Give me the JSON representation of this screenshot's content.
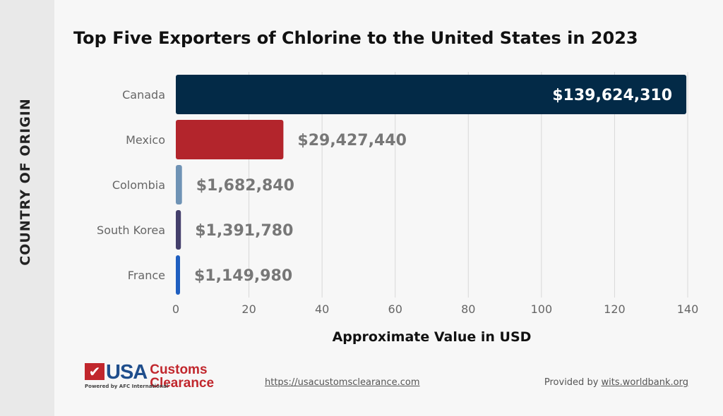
{
  "chart_data": {
    "type": "bar",
    "orientation": "horizontal",
    "title": "Top Five Exporters of Chlorine to the United States in 2023",
    "xlabel": "Approximate Value in USD",
    "ylabel": "COUNTRY OF ORIGIN",
    "categories": [
      "Canada",
      "Mexico",
      "Colombia",
      "South Korea",
      "France"
    ],
    "values": [
      139.62431,
      29.42744,
      1.68284,
      1.39178,
      1.14998
    ],
    "data_labels": [
      "$139,624,310",
      "$29,427,440",
      "$1,682,840",
      "$1,391,780",
      "$1,149,980"
    ],
    "colors": [
      "#032a47",
      "#b3252c",
      "#6f93b5",
      "#443f6b",
      "#1f5fc0"
    ],
    "xlim": [
      0,
      140
    ],
    "xticks": [
      "0",
      "20",
      "40",
      "60",
      "80",
      "100",
      "120",
      "140"
    ],
    "grid": true
  },
  "footer": {
    "logo_text": "USA Customs Clearance",
    "logo_sub": "Powered by AFC International",
    "url": "https://usacustomsclearance.com",
    "provided_prefix": "Provided by ",
    "provided_link": "wits.worldbank.org"
  }
}
